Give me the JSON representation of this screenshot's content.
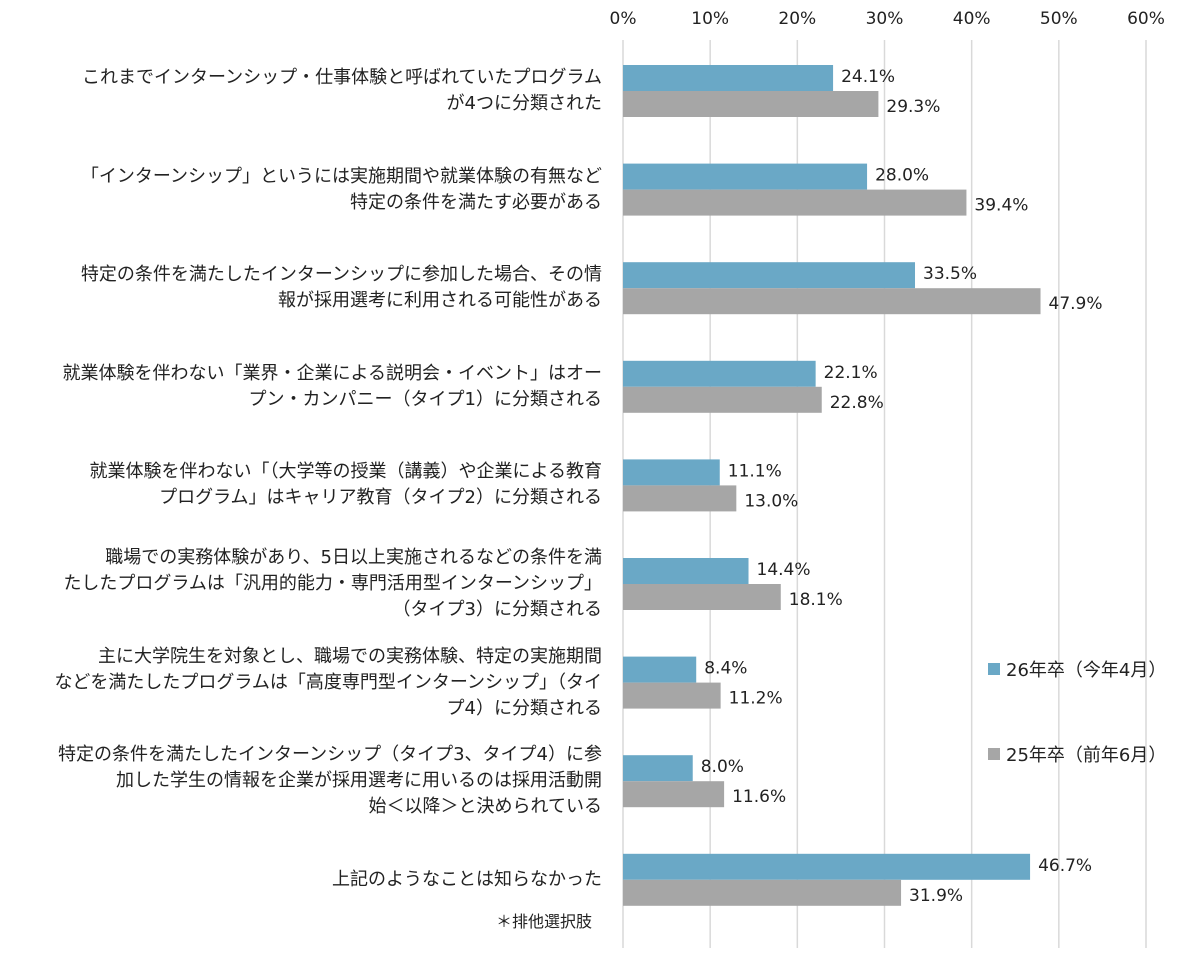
{
  "chart_data": {
    "type": "bar",
    "orientation": "horizontal",
    "xlim": [
      0,
      60
    ],
    "ticks": [
      {
        "value": 0,
        "label": "0%"
      },
      {
        "value": 10,
        "label": "10%"
      },
      {
        "value": 20,
        "label": "20%"
      },
      {
        "value": 30,
        "label": "30%"
      },
      {
        "value": 40,
        "label": "40%"
      },
      {
        "value": 50,
        "label": "50%"
      },
      {
        "value": 60,
        "label": "60%"
      }
    ],
    "grid": true,
    "categories": [
      {
        "lines": [
          "これまでインターンシップ・仕事体験と呼ばれていたプログラム",
          "が4つに分類された"
        ]
      },
      {
        "lines": [
          "「インターンシップ」というには実施期間や就業体験の有無など",
          "特定の条件を満たす必要がある"
        ]
      },
      {
        "lines": [
          "特定の条件を満たしたインターンシップに参加した場合、その情",
          "報が採用選考に利用される可能性がある"
        ]
      },
      {
        "lines": [
          "就業体験を伴わない「業界・企業による説明会・イベント」はオー",
          "プン・カンパニー（タイプ1）に分類される"
        ]
      },
      {
        "lines": [
          "就業体験を伴わない「（大学等の授業（講義）や企業による教育",
          "プログラム」はキャリア教育（タイプ2）に分類される"
        ]
      },
      {
        "lines": [
          "職場での実務体験があり、5日以上実施されるなどの条件を満",
          "たしたプログラムは「汎用的能力・専門活用型インターンシップ」",
          "（タイプ3）に分類される"
        ]
      },
      {
        "lines": [
          "主に大学院生を対象とし、職場での実務体験、特定の実施期間",
          "などを満たしたプログラムは「高度専門型インターンシップ」（タイ",
          "プ4）に分類される"
        ]
      },
      {
        "lines": [
          "特定の条件を満たしたインターンシップ（タイプ3、タイプ4）に参",
          "加した学生の情報を企業が採用選考に用いるのは採用活動開",
          "始＜以降＞と決められている"
        ]
      },
      {
        "lines": [
          "上記のようなことは知らなかった"
        ]
      }
    ],
    "series": [
      {
        "name": "26年卒（今年4月）",
        "color": "#6aa8c6",
        "values": [
          24.1,
          28.0,
          33.5,
          22.1,
          11.1,
          14.4,
          8.4,
          8.0,
          46.7
        ],
        "labels": [
          "24.1%",
          "28.0%",
          "33.5%",
          "22.1%",
          "11.1%",
          "14.4%",
          "8.4%",
          "8.0%",
          "46.7%"
        ]
      },
      {
        "name": "25年卒（前年6月）",
        "color": "#a6a6a6",
        "values": [
          29.3,
          39.4,
          47.9,
          22.8,
          13.0,
          18.1,
          11.2,
          11.6,
          31.9
        ],
        "labels": [
          "29.3%",
          "39.4%",
          "47.9%",
          "22.8%",
          "13.0%",
          "18.1%",
          "11.2%",
          "11.6%",
          "31.9%"
        ]
      }
    ],
    "legend_position": "right",
    "annotation": "＊排他選択肢"
  }
}
